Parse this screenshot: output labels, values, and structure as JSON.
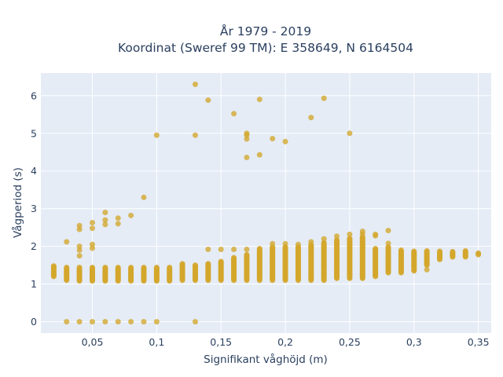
{
  "chart_data": {
    "type": "scatter",
    "title_lines": [
      "År 1979 - 2019",
      "Koordinat (Sweref 99 TM): E 358649, N 6164504"
    ],
    "xlabel": "Signifikant våghöjd (m)",
    "ylabel": "Vågperiod (s)",
    "xlim": [
      0.01,
      0.36
    ],
    "ylim": [
      -0.3,
      6.6
    ],
    "xticks": [
      0.05,
      0.1,
      0.15,
      0.2,
      0.25,
      0.3,
      0.35
    ],
    "xtick_labels": [
      "0,05",
      "0,1",
      "0,15",
      "0,2",
      "0,25",
      "0,3",
      "0,35"
    ],
    "yticks": [
      0,
      1,
      2,
      3,
      4,
      5,
      6
    ],
    "ytick_labels": [
      "0",
      "1",
      "2",
      "3",
      "4",
      "5",
      "6"
    ],
    "grid": true,
    "marker_color": "#d4a72c",
    "plot_background": "#e5ecf6",
    "columns": [
      {
        "x": 0.02,
        "ymin": 1.2,
        "ymax": 1.48,
        "extra": []
      },
      {
        "x": 0.03,
        "ymin": 1.1,
        "ymax": 1.45,
        "extra": [
          0,
          2.12
        ]
      },
      {
        "x": 0.04,
        "ymin": 1.08,
        "ymax": 1.45,
        "extra": [
          0,
          1.75,
          1.9,
          2.0,
          2.45,
          2.55
        ]
      },
      {
        "x": 0.05,
        "ymin": 1.08,
        "ymax": 1.45,
        "extra": [
          0,
          1.95,
          2.05,
          2.48,
          2.63
        ]
      },
      {
        "x": 0.06,
        "ymin": 1.08,
        "ymax": 1.45,
        "extra": [
          0,
          2.58,
          2.7,
          2.9
        ]
      },
      {
        "x": 0.07,
        "ymin": 1.08,
        "ymax": 1.45,
        "extra": [
          0,
          2.6,
          2.75
        ]
      },
      {
        "x": 0.08,
        "ymin": 1.08,
        "ymax": 1.45,
        "extra": [
          0,
          2.82
        ]
      },
      {
        "x": 0.09,
        "ymin": 1.08,
        "ymax": 1.45,
        "extra": [
          0,
          3.3
        ]
      },
      {
        "x": 0.1,
        "ymin": 1.08,
        "ymax": 1.45,
        "extra": [
          0,
          4.95
        ]
      },
      {
        "x": 0.11,
        "ymin": 1.08,
        "ymax": 1.45,
        "extra": []
      },
      {
        "x": 0.12,
        "ymin": 1.1,
        "ymax": 1.55,
        "extra": []
      },
      {
        "x": 0.13,
        "ymin": 1.1,
        "ymax": 1.5,
        "extra": [
          0,
          4.95,
          6.3
        ]
      },
      {
        "x": 0.14,
        "ymin": 1.1,
        "ymax": 1.55,
        "extra": [
          1.92,
          5.88
        ]
      },
      {
        "x": 0.15,
        "ymin": 1.1,
        "ymax": 1.6,
        "extra": [
          1.92
        ]
      },
      {
        "x": 0.16,
        "ymin": 1.1,
        "ymax": 1.7,
        "extra": [
          1.92,
          5.52
        ]
      },
      {
        "x": 0.17,
        "ymin": 1.1,
        "ymax": 1.78,
        "extra": [
          1.92,
          4.36,
          4.85,
          4.95,
          5.0
        ]
      },
      {
        "x": 0.18,
        "ymin": 1.1,
        "ymax": 1.95,
        "extra": [
          4.43,
          5.9
        ]
      },
      {
        "x": 0.19,
        "ymin": 1.1,
        "ymax": 1.98,
        "extra": [
          2.07,
          4.86
        ]
      },
      {
        "x": 0.2,
        "ymin": 1.1,
        "ymax": 1.98,
        "extra": [
          2.07,
          4.78
        ]
      },
      {
        "x": 0.21,
        "ymin": 1.1,
        "ymax": 1.98,
        "extra": [
          2.05
        ]
      },
      {
        "x": 0.22,
        "ymin": 1.1,
        "ymax": 2.05,
        "extra": [
          2.12,
          5.42
        ]
      },
      {
        "x": 0.23,
        "ymin": 1.1,
        "ymax": 2.1,
        "extra": [
          2.2,
          5.93
        ]
      },
      {
        "x": 0.24,
        "ymin": 1.15,
        "ymax": 2.18,
        "extra": [
          2.27
        ]
      },
      {
        "x": 0.25,
        "ymin": 1.15,
        "ymax": 2.22,
        "extra": [
          2.32,
          5.0
        ]
      },
      {
        "x": 0.26,
        "ymin": 1.15,
        "ymax": 2.25,
        "extra": [
          2.33,
          2.4
        ]
      },
      {
        "x": 0.27,
        "ymin": 1.2,
        "ymax": 1.95,
        "extra": [
          2.28,
          2.32
        ]
      },
      {
        "x": 0.28,
        "ymin": 1.3,
        "ymax": 1.98,
        "extra": [
          2.08,
          2.42
        ]
      },
      {
        "x": 0.29,
        "ymin": 1.3,
        "ymax": 1.9,
        "extra": []
      },
      {
        "x": 0.3,
        "ymin": 1.35,
        "ymax": 1.88,
        "extra": []
      },
      {
        "x": 0.31,
        "ymin": 1.5,
        "ymax": 1.88,
        "extra": [
          1.38
        ]
      },
      {
        "x": 0.32,
        "ymin": 1.65,
        "ymax": 1.88,
        "extra": []
      },
      {
        "x": 0.33,
        "ymin": 1.72,
        "ymax": 1.87,
        "extra": []
      },
      {
        "x": 0.34,
        "ymin": 1.72,
        "ymax": 1.88,
        "extra": []
      },
      {
        "x": 0.35,
        "ymin": 1.78,
        "ymax": 1.83,
        "extra": []
      }
    ]
  }
}
